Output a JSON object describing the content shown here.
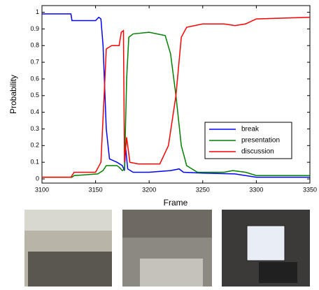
{
  "chart_data": {
    "type": "line",
    "x_label": "Frame",
    "y_label": "Probability",
    "xlim": [
      3100,
      3350
    ],
    "ylim": [
      -0.025,
      1.04
    ],
    "xticks": [
      3100,
      3150,
      3200,
      3250,
      3300,
      3350
    ],
    "yticks": [
      0,
      0.1,
      0.2,
      0.3,
      0.4,
      0.5,
      0.6,
      0.7,
      0.8,
      0.9,
      1
    ],
    "legend": "lower right",
    "series": [
      {
        "name": "break",
        "color": "#0000ff",
        "x": [
          3100,
          3127,
          3128,
          3150,
          3153,
          3155,
          3157,
          3160,
          3163,
          3170,
          3175,
          3177,
          3178,
          3180,
          3185,
          3200,
          3220,
          3228,
          3232,
          3250,
          3280,
          3300,
          3350
        ],
        "values": [
          0.99,
          0.99,
          0.95,
          0.95,
          0.97,
          0.96,
          0.8,
          0.3,
          0.12,
          0.1,
          0.08,
          0.05,
          0.19,
          0.06,
          0.04,
          0.04,
          0.05,
          0.06,
          0.04,
          0.035,
          0.03,
          0.01,
          0.01
        ]
      },
      {
        "name": "presentation",
        "color": "#008000",
        "x": [
          3100,
          3128,
          3130,
          3152,
          3157,
          3160,
          3170,
          3172,
          3175,
          3177,
          3179,
          3181,
          3185,
          3200,
          3215,
          3220,
          3225,
          3230,
          3235,
          3245,
          3270,
          3278,
          3290,
          3300,
          3350
        ],
        "values": [
          0.01,
          0.01,
          0.02,
          0.03,
          0.05,
          0.08,
          0.08,
          0.07,
          0.05,
          0.06,
          0.6,
          0.85,
          0.87,
          0.88,
          0.86,
          0.75,
          0.5,
          0.2,
          0.08,
          0.04,
          0.04,
          0.05,
          0.04,
          0.02,
          0.02
        ]
      },
      {
        "name": "discussion",
        "color": "#ff0000",
        "x": [
          3100,
          3127,
          3130,
          3150,
          3155,
          3158,
          3160,
          3165,
          3172,
          3174,
          3176,
          3177,
          3179,
          3182,
          3190,
          3210,
          3218,
          3225,
          3230,
          3235,
          3250,
          3270,
          3280,
          3290,
          3300,
          3350
        ],
        "values": [
          0.01,
          0.01,
          0.04,
          0.04,
          0.1,
          0.5,
          0.78,
          0.8,
          0.8,
          0.88,
          0.89,
          0.1,
          0.25,
          0.1,
          0.09,
          0.09,
          0.2,
          0.5,
          0.85,
          0.91,
          0.93,
          0.93,
          0.92,
          0.93,
          0.96,
          0.97
        ]
      }
    ]
  }
}
